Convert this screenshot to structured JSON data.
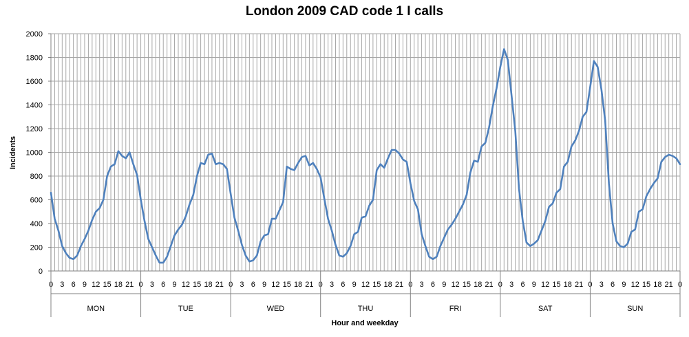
{
  "chart_data": {
    "type": "line",
    "title": "London 2009 CAD code 1 I calls",
    "xlabel": "Hour and weekday",
    "ylabel": "Incidents",
    "ylim": [
      0,
      2000
    ],
    "yticks": [
      0,
      200,
      400,
      600,
      800,
      1000,
      1200,
      1400,
      1600,
      1800,
      2000
    ],
    "hour_tick_labels": [
      "0",
      "3",
      "6",
      "9",
      "12",
      "15",
      "18",
      "21"
    ],
    "days": [
      "MON",
      "TUE",
      "WED",
      "THU",
      "FRI",
      "SAT",
      "SUN"
    ],
    "grid": true,
    "legend": "none",
    "line_color": "#4F81BD",
    "series": [
      {
        "values": [
          660,
          440,
          340,
          210,
          150,
          110,
          100,
          130,
          210,
          270,
          340,
          430,
          500,
          530,
          600,
          800,
          880,
          900,
          1010,
          970,
          950,
          1000,
          900,
          810,
          600,
          420,
          270,
          200,
          130,
          70,
          70,
          120,
          210,
          300,
          350,
          390,
          460,
          560,
          640,
          800,
          910,
          900,
          980,
          990,
          900,
          910,
          900,
          860,
          650,
          450,
          340,
          220,
          130,
          80,
          90,
          130,
          250,
          300,
          310,
          440,
          440,
          510,
          580,
          880,
          860,
          850,
          910,
          960,
          970,
          890,
          910,
          860,
          790,
          610,
          440,
          340,
          220,
          130,
          120,
          150,
          210,
          310,
          330,
          450,
          460,
          550,
          600,
          850,
          900,
          870,
          950,
          1020,
          1020,
          990,
          940,
          920,
          740,
          590,
          520,
          310,
          210,
          120,
          100,
          120,
          210,
          280,
          350,
          390,
          440,
          500,
          560,
          640,
          830,
          930,
          920,
          1050,
          1080,
          1210,
          1390,
          1540,
          1720,
          1870,
          1780,
          1480,
          1180,
          690,
          420,
          240,
          210,
          230,
          260,
          340,
          420,
          540,
          570,
          660,
          690,
          880,
          920,
          1050,
          1100,
          1180,
          1300,
          1340,
          1550,
          1770,
          1720,
          1530,
          1270,
          740,
          400,
          250,
          210,
          200,
          230,
          330,
          350,
          500,
          520,
          630,
          690,
          740,
          780,
          920,
          960,
          980,
          970,
          950,
          900
        ]
      }
    ]
  }
}
